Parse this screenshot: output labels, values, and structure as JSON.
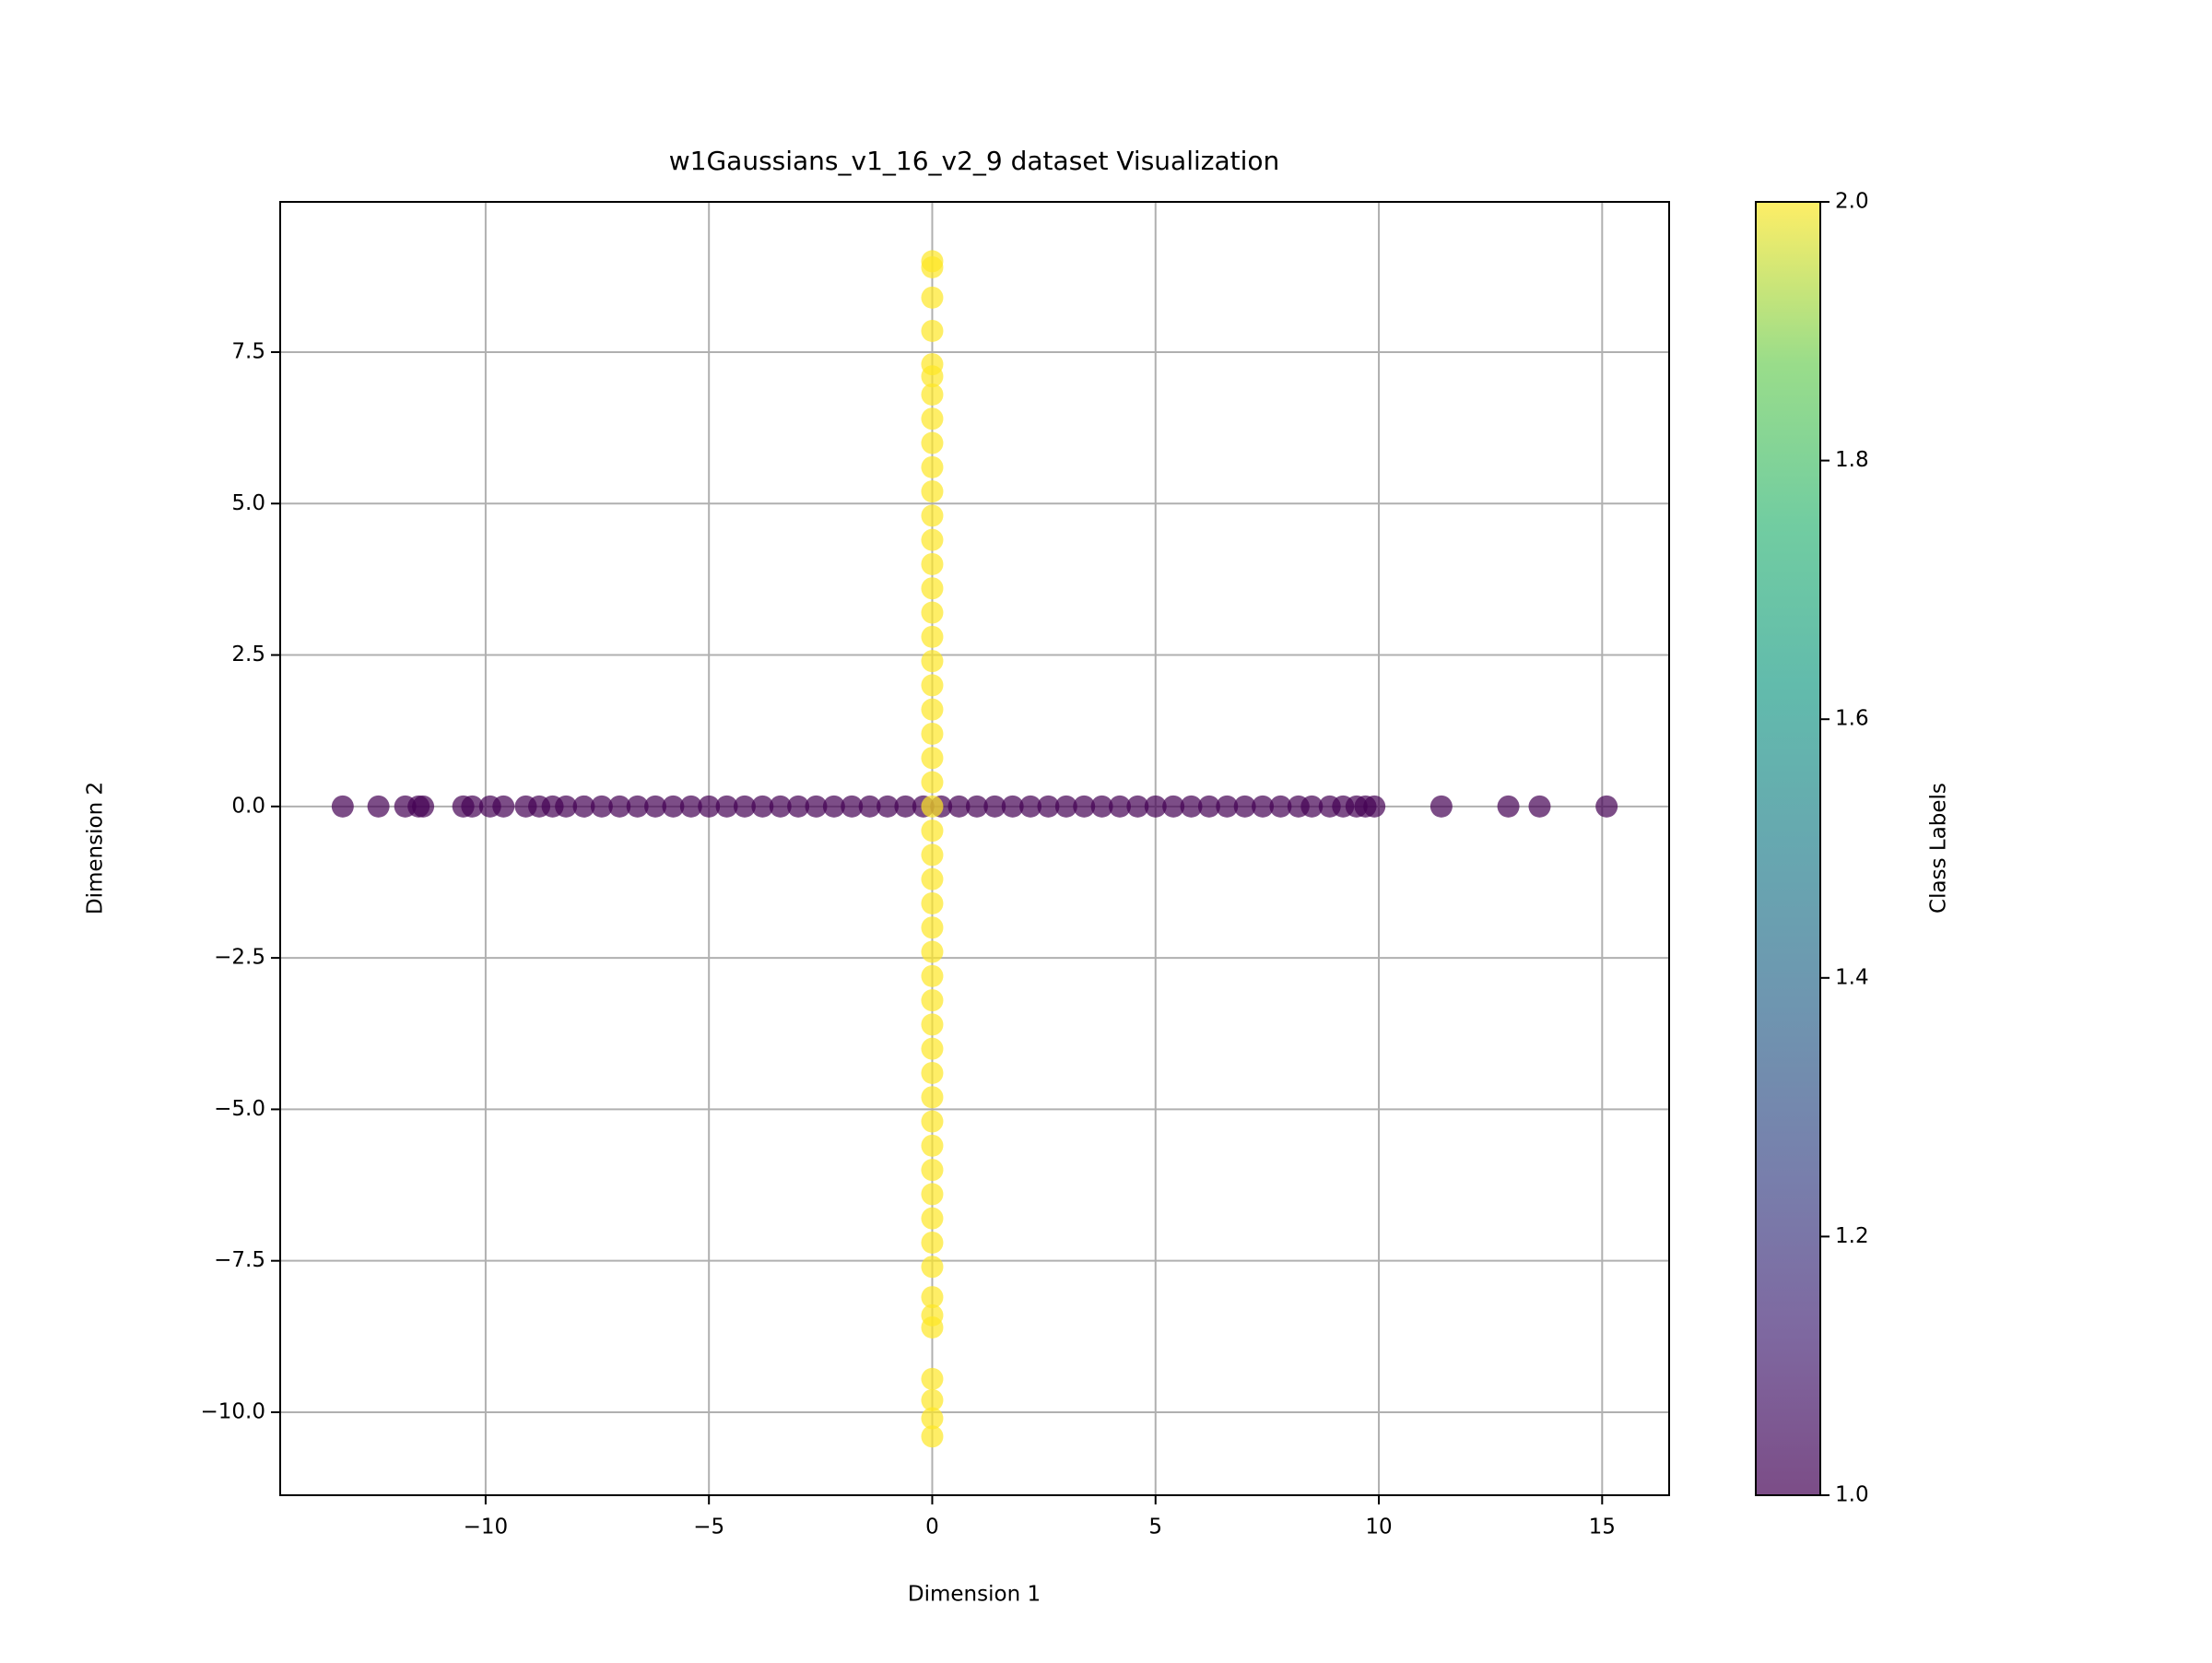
{
  "chart_data": {
    "type": "scatter",
    "title": "w1Gaussians_v1_16_v2_9 dataset Visualization",
    "xlabel": "Dimension 1",
    "ylabel": "Dimension 2",
    "xlim": [
      -14.6,
      16.5
    ],
    "ylim": [
      -11.37,
      9.98
    ],
    "xticks": [
      {
        "value": -10,
        "label": "−10"
      },
      {
        "value": -5,
        "label": "−5"
      },
      0,
      5,
      10,
      15
    ],
    "yticks": [
      {
        "value": -10,
        "label": "−10.0"
      },
      {
        "value": -7.5,
        "label": "−7.5"
      },
      {
        "value": -5,
        "label": "−5.0"
      },
      {
        "value": -2.5,
        "label": "−2.5"
      },
      {
        "value": 0,
        "label": "0.0"
      },
      2.5,
      {
        "value": 5,
        "label": "5.0"
      },
      7.5
    ],
    "grid": true,
    "series": [
      {
        "color": "#440154",
        "x": [
          -13.2,
          -12.4,
          -11.8,
          -11.5,
          -11.4,
          -10.5,
          -10.3,
          -9.9,
          -9.6,
          -9.1,
          -8.8,
          -8.5,
          -8.2,
          -7.8,
          -7.4,
          -7.0,
          -6.6,
          -6.2,
          -5.8,
          -5.4,
          -5.0,
          -4.6,
          -4.2,
          -3.8,
          -3.4,
          -3.0,
          -2.6,
          -2.2,
          -1.8,
          -1.4,
          -1.0,
          -0.6,
          -0.2,
          0.2,
          0.6,
          1.0,
          1.4,
          1.8,
          2.2,
          2.6,
          3.0,
          3.4,
          3.8,
          4.2,
          4.6,
          5.0,
          5.4,
          5.8,
          6.2,
          6.6,
          7.0,
          7.4,
          7.8,
          8.2,
          8.5,
          8.9,
          9.2,
          9.5,
          9.7,
          9.9,
          11.4,
          12.9,
          13.6,
          15.1
        ],
        "y": [
          0,
          0,
          0,
          0,
          0,
          0,
          0,
          0,
          0,
          0,
          0,
          0,
          0,
          0,
          0,
          0,
          0,
          0,
          0,
          0,
          0,
          0,
          0,
          0,
          0,
          0,
          0,
          0,
          0,
          0,
          0,
          0,
          0,
          0,
          0,
          0,
          0,
          0,
          0,
          0,
          0,
          0,
          0,
          0,
          0,
          0,
          0,
          0,
          0,
          0,
          0,
          0,
          0,
          0,
          0,
          0,
          0,
          0,
          0,
          0,
          0,
          0,
          0,
          0
        ]
      },
      {
        "color": "#fde725",
        "x": [
          0,
          0,
          0,
          0,
          0,
          0,
          0,
          0,
          0,
          0,
          0,
          0,
          0,
          0,
          0,
          0,
          0,
          0,
          0,
          0,
          0,
          0,
          0,
          0,
          0,
          0,
          0,
          0,
          0,
          0,
          0,
          0,
          0,
          0,
          0,
          0,
          0,
          0,
          0,
          0,
          0,
          0,
          0,
          0,
          0,
          0,
          0,
          0,
          0,
          0
        ],
        "y": [
          9.0,
          8.9,
          8.4,
          7.85,
          7.3,
          7.1,
          6.8,
          6.4,
          6.0,
          5.6,
          5.2,
          4.8,
          4.4,
          4.0,
          3.6,
          3.2,
          2.8,
          2.4,
          2.0,
          1.6,
          1.2,
          0.8,
          0.4,
          0.0,
          -0.4,
          -0.8,
          -1.2,
          -1.6,
          -2.0,
          -2.4,
          -2.8,
          -3.2,
          -3.6,
          -4.0,
          -4.4,
          -4.8,
          -5.2,
          -5.6,
          -6.0,
          -6.4,
          -6.8,
          -7.2,
          -7.6,
          -8.1,
          -8.4,
          -8.6,
          -9.45,
          -9.8,
          -10.1,
          -10.4
        ]
      }
    ],
    "colorbar": {
      "label": "Class Labels",
      "lim": [
        1,
        2
      ],
      "ticks": [
        {
          "value": 1,
          "label": "1.0"
        },
        1.2,
        1.4,
        1.6,
        1.8,
        {
          "value": 2,
          "label": "2.0"
        }
      ]
    }
  }
}
